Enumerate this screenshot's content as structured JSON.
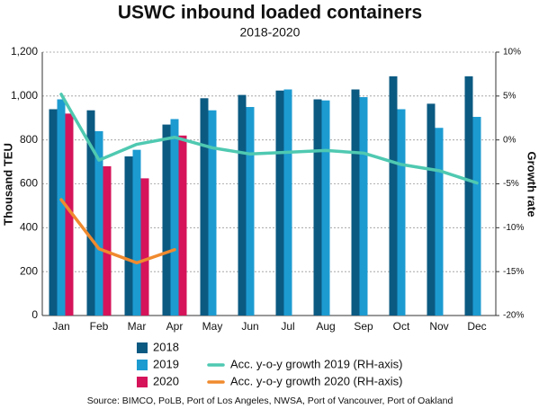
{
  "chart_data": {
    "type": "bar",
    "title": "USWC inbound loaded containers",
    "subtitle": "2018-2020",
    "y_label": "Thousand TEU",
    "y2_label": "Growth rate",
    "source": "Source: BIMCO, PoLB, Port of Los Angeles, NWSA, Port of Vancouver, Port of Oakland",
    "categories": [
      "Jan",
      "Feb",
      "Mar",
      "Apr",
      "May",
      "Jun",
      "Jul",
      "Aug",
      "Sep",
      "Oct",
      "Nov",
      "Dec"
    ],
    "series": [
      {
        "name": "2018",
        "color": "#0b5a82",
        "values": [
          940,
          935,
          725,
          870,
          990,
          1005,
          1025,
          985,
          1030,
          1090,
          965,
          1090
        ]
      },
      {
        "name": "2019",
        "color": "#1c9bd1",
        "values": [
          985,
          840,
          755,
          895,
          935,
          950,
          1030,
          980,
          995,
          940,
          855,
          905
        ]
      },
      {
        "name": "2020",
        "color": "#d5145a",
        "values": [
          920,
          680,
          625,
          820,
          null,
          null,
          null,
          null,
          null,
          null,
          null,
          null
        ]
      },
      {
        "name": "Acc. y-o-y growth 2019 (RH-axis)",
        "type": "line",
        "axis": "y2",
        "color": "#4fc9b1",
        "values": [
          5.2,
          -2.3,
          -0.5,
          0.3,
          -0.9,
          -1.6,
          -1.4,
          -1.2,
          -1.5,
          -2.8,
          -3.5,
          -4.9
        ]
      },
      {
        "name": "Acc. y-o-y growth 2020 (RH-axis)",
        "type": "line",
        "axis": "y2",
        "color": "#f08a2e",
        "values": [
          -6.8,
          -12.4,
          -14,
          -12.5,
          null,
          null,
          null,
          null,
          null,
          null,
          null,
          null
        ]
      }
    ],
    "ylim": [
      0,
      1200
    ],
    "yticks": [
      0,
      200,
      400,
      600,
      800,
      {
        "value": 1000,
        "label": "1,000"
      },
      {
        "value": 1200,
        "label": "1,200"
      }
    ],
    "y2lim": [
      -20,
      10
    ],
    "y2ticks": [
      {
        "value": -20,
        "label": "-20%"
      },
      {
        "value": -15,
        "label": "-15%"
      },
      {
        "value": -10,
        "label": "-10%"
      },
      {
        "value": -5,
        "label": "-5%"
      },
      {
        "value": 0,
        "label": "0%"
      },
      {
        "value": 5,
        "label": "5%"
      },
      {
        "value": 10,
        "label": "10%"
      }
    ],
    "grid": true
  }
}
